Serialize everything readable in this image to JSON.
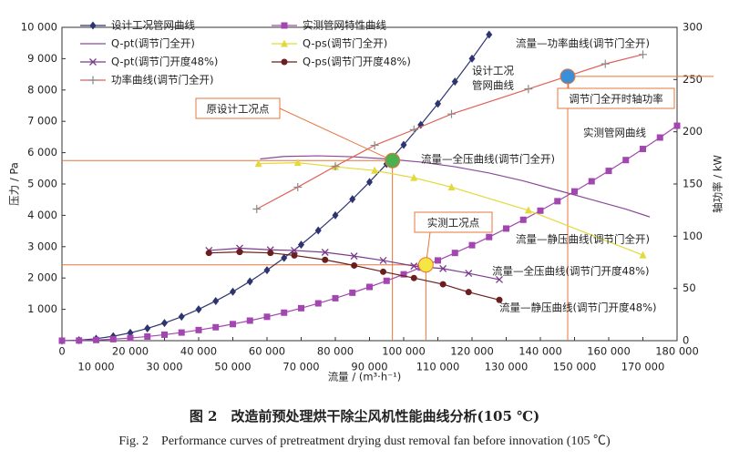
{
  "chart_data": {
    "type": "line",
    "xlabel": "流量 / (m³·h⁻¹)",
    "ylabel": "压力 / Pa",
    "y2label": "轴功率 / kW",
    "xlim": [
      0,
      180000
    ],
    "ylim": [
      0,
      10000
    ],
    "y2lim": [
      0,
      300
    ],
    "xticks": [
      0,
      {
        "value": 10000,
        "label": "10 000"
      },
      {
        "value": 20000,
        "label": "20 000"
      },
      {
        "value": 30000,
        "label": "30 000"
      },
      {
        "value": 40000,
        "label": "40 000"
      },
      {
        "value": 50000,
        "label": "50 000"
      },
      {
        "value": 60000,
        "label": "60 000"
      },
      {
        "value": 70000,
        "label": "70 000"
      },
      {
        "value": 80000,
        "label": "80 000"
      },
      {
        "value": 90000,
        "label": "90 000"
      },
      {
        "value": 100000,
        "label": "100 000"
      },
      {
        "value": 110000,
        "label": "110 000"
      },
      {
        "value": 120000,
        "label": "120 000"
      },
      {
        "value": 130000,
        "label": "130 000"
      },
      {
        "value": 140000,
        "label": "140 000"
      },
      {
        "value": 150000,
        "label": "150 000"
      },
      {
        "value": 160000,
        "label": "160 000"
      },
      {
        "value": 170000,
        "label": "170 000"
      },
      {
        "value": 180000,
        "label": "180 000"
      }
    ],
    "yticks": [
      {
        "value": 1000,
        "label": "1 000"
      },
      {
        "value": 2000,
        "label": "2 000"
      },
      {
        "value": 3000,
        "label": "3 000"
      },
      {
        "value": 4000,
        "label": "4 000"
      },
      {
        "value": 5000,
        "label": "5 000"
      },
      {
        "value": 6000,
        "label": "6 000"
      },
      {
        "value": 7000,
        "label": "7 000"
      },
      {
        "value": 8000,
        "label": "8 000"
      },
      {
        "value": 9000,
        "label": "9 000"
      },
      {
        "value": 10000,
        "label": "10 000"
      }
    ],
    "y2ticks": [
      0,
      50,
      100,
      150,
      200,
      250,
      300
    ],
    "series": [
      {
        "name": "设计工况管网曲线",
        "color": "#2e3470",
        "marker": "diamond",
        "line": true,
        "x": [
          0,
          5000,
          10000,
          15000,
          20000,
          25000,
          30000,
          35000,
          40000,
          45000,
          50000,
          55000,
          60000,
          65000,
          70000,
          75000,
          80000,
          85000,
          90000,
          95000,
          100000,
          105000,
          110000,
          115000,
          120000,
          125000
        ],
        "values": [
          0,
          16,
          63,
          141,
          250,
          391,
          563,
          766,
          1000,
          1266,
          1563,
          1891,
          2250,
          2641,
          3063,
          3516,
          4000,
          4516,
          5063,
          5641,
          6250,
          6891,
          7563,
          8266,
          9000,
          9766
        ]
      },
      {
        "name": "实测管网特性曲线",
        "color": "#a347b0",
        "marker": "square",
        "line": true,
        "x": [
          0,
          5000,
          10000,
          15000,
          20000,
          25000,
          30000,
          35000,
          40000,
          45000,
          50000,
          55000,
          60000,
          65000,
          70000,
          75000,
          80000,
          85000,
          90000,
          95000,
          100000,
          105000,
          110000,
          115000,
          120000,
          125000,
          130000,
          135000,
          140000,
          145000,
          150000,
          155000,
          160000,
          165000,
          170000,
          175000,
          180000
        ],
        "values": [
          0,
          5,
          21,
          48,
          85,
          132,
          191,
          259,
          339,
          429,
          529,
          640,
          762,
          894,
          1037,
          1191,
          1355,
          1530,
          1715,
          1911,
          2117,
          2334,
          2561,
          2800,
          3048,
          3308,
          3578,
          3858,
          4149,
          4451,
          4763,
          5086,
          5419,
          5764,
          6118,
          6483,
          6859
        ]
      },
      {
        "name": "Q-pt(调节门全开)",
        "color": "#8a4a9a",
        "marker": "none",
        "line": true,
        "x": [
          58000,
          65000,
          75000,
          85000,
          95000,
          105000,
          115000,
          125000,
          135000,
          145000,
          155000,
          165000,
          172000
        ],
        "values": [
          5800,
          5880,
          5900,
          5870,
          5800,
          5700,
          5550,
          5350,
          5100,
          4800,
          4500,
          4200,
          3950
        ]
      },
      {
        "name": "Q-ps(调节门全开)",
        "color": "#e2da3a",
        "marker": "triangle",
        "line": true,
        "x": [
          57500,
          69000,
          80000,
          91500,
          103000,
          114000,
          136500,
          170000
        ],
        "values": [
          5650,
          5680,
          5550,
          5430,
          5200,
          4900,
          4160,
          2730
        ]
      },
      {
        "name": "Q-pt(调节门开度48%)",
        "color": "#7a3b8c",
        "marker": "x",
        "line": true,
        "x": [
          43000,
          52000,
          61000,
          68000,
          77000,
          85500,
          94000,
          103000,
          111500,
          119000,
          128000
        ],
        "values": [
          2880,
          2950,
          2900,
          2880,
          2820,
          2700,
          2560,
          2380,
          2300,
          2150,
          1950
        ]
      },
      {
        "name": "Q-ps(调节门开度48%)",
        "color": "#6a1e1e",
        "marker": "circle",
        "line": true,
        "x": [
          43000,
          52000,
          61000,
          68000,
          77000,
          85500,
          94000,
          103000,
          111500,
          119000,
          128000
        ],
        "values": [
          2800,
          2830,
          2800,
          2720,
          2580,
          2400,
          2200,
          2000,
          1800,
          1550,
          1300
        ]
      },
      {
        "name": "功率曲线(调节门全开)",
        "color": "#e06058",
        "marker_color": "#8a8a8a",
        "marker": "plus",
        "line": true,
        "axis": "y2",
        "x": [
          57000,
          69000,
          80000,
          91500,
          103000,
          114000,
          136500,
          159000,
          170000
        ],
        "values": [
          126,
          147,
          167,
          187,
          202,
          217,
          241,
          265,
          274
        ]
      }
    ],
    "annotations": [
      "流量—功率曲线(调节门全开)",
      "设计工况",
      "管网曲线",
      "实测管网曲线",
      "流量—全压曲线(调节门全开)",
      "流量—静压曲线(调节门全开)",
      "流量—全压曲线(调节门开度48%)",
      "流量—静压曲线(调节门开度48%)"
    ],
    "points": [
      {
        "label": "原设计工况点",
        "x": 96700,
        "y": 5750,
        "color": "#4caf50"
      },
      {
        "label": "实测工况点",
        "x": 106500,
        "y": 2420,
        "color": "#f5e642"
      },
      {
        "label": "调节门全开时轴功率",
        "x": 148000,
        "y": 253,
        "axis": "y2",
        "color": "#3b8fd6"
      }
    ],
    "ref_color": "#e8743b"
  },
  "caption": {
    "cn": "图 2　改造前预处理烘干除尘风机性能曲线分析(105 ℃)",
    "en": "Fig. 2　Performance curves of pretreatment drying dust removal fan before innovation (105 ℃)"
  }
}
